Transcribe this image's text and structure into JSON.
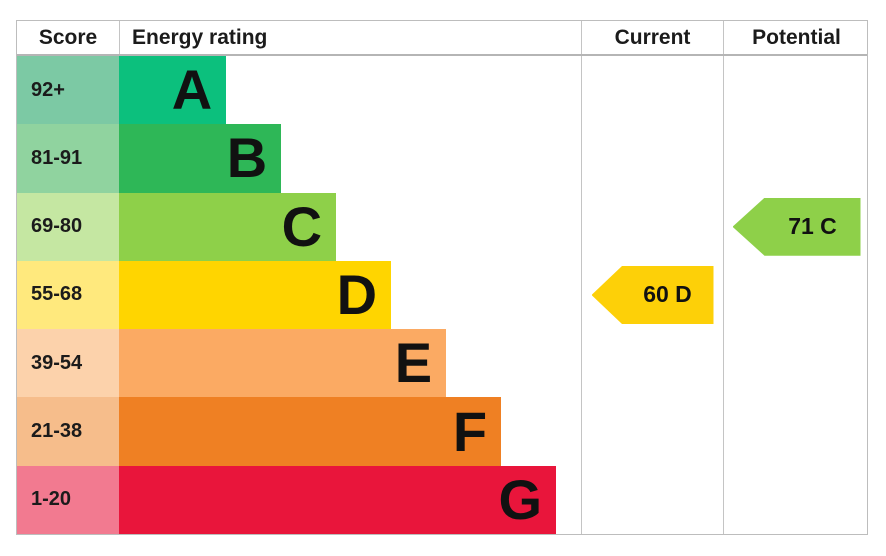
{
  "header": {
    "score": "Score",
    "rating": "Energy rating",
    "current": "Current",
    "potential": "Potential"
  },
  "bands": [
    {
      "letter": "A",
      "range": "92+",
      "color": "#0cc07d",
      "tint": "#7cc9a4",
      "width_pct": 23.2
    },
    {
      "letter": "B",
      "range": "81-91",
      "color": "#2eb757",
      "tint": "#90d39f",
      "width_pct": 35.1
    },
    {
      "letter": "C",
      "range": "69-80",
      "color": "#8ed049",
      "tint": "#c5e7a2",
      "width_pct": 47.0
    },
    {
      "letter": "D",
      "range": "55-68",
      "color": "#ffd500",
      "tint": "#ffe97d",
      "width_pct": 58.9
    },
    {
      "letter": "E",
      "range": "39-54",
      "color": "#fbaa63",
      "tint": "#fcd2ab",
      "width_pct": 70.8
    },
    {
      "letter": "F",
      "range": "21-38",
      "color": "#ef8023",
      "tint": "#f6bd8b",
      "width_pct": 82.7
    },
    {
      "letter": "G",
      "range": "1-20",
      "color": "#e9153b",
      "tint": "#f27a90",
      "width_pct": 94.6
    }
  ],
  "current": {
    "label": "60 D",
    "score": 60,
    "band": "D",
    "color": "#fdd008"
  },
  "potential": {
    "label": "71 C",
    "score": 71,
    "band": "C",
    "color": "#8ed049"
  },
  "chart_data": {
    "type": "bar",
    "title": "EPC Energy rating chart",
    "categories": [
      "A",
      "B",
      "C",
      "D",
      "E",
      "F",
      "G"
    ],
    "score_ranges": [
      "92+",
      "81-91",
      "69-80",
      "55-68",
      "39-54",
      "21-38",
      "1-20"
    ],
    "bar_width_pct": [
      23.2,
      35.1,
      47.0,
      58.9,
      70.8,
      82.7,
      94.6
    ],
    "colors": [
      "#0cc07d",
      "#2eb757",
      "#8ed049",
      "#ffd500",
      "#fbaa63",
      "#ef8023",
      "#e9153b"
    ],
    "markers": [
      {
        "name": "Current",
        "score": 60,
        "band": "D"
      },
      {
        "name": "Potential",
        "score": 71,
        "band": "C"
      }
    ],
    "columns": [
      "Score",
      "Energy rating",
      "Current",
      "Potential"
    ],
    "legend_position": "none",
    "grid": false
  }
}
